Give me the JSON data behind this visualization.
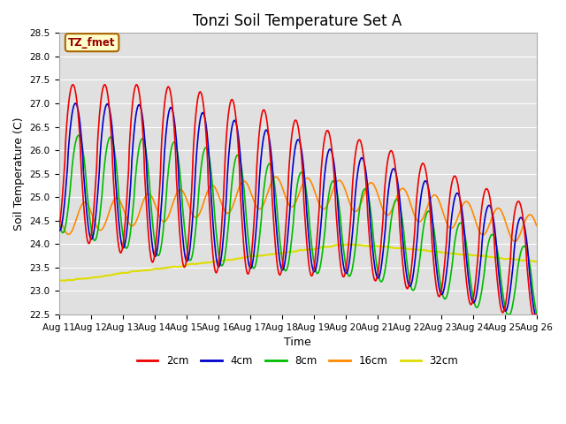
{
  "title": "Tonzi Soil Temperature Set A",
  "xlabel": "Time",
  "ylabel": "Soil Temperature (C)",
  "ylim": [
    22.5,
    28.5
  ],
  "colors": {
    "2cm": "#EE0000",
    "4cm": "#0000CC",
    "8cm": "#00BB00",
    "16cm": "#FF8800",
    "32cm": "#DDDD00"
  },
  "legend_labels": [
    "2cm",
    "4cm",
    "8cm",
    "16cm",
    "32cm"
  ],
  "annotation_text": "TZ_fmet",
  "annotation_bg": "#FFFFCC",
  "annotation_border": "#AA6600",
  "background_color": "#E0E0E0",
  "grid_color": "#FFFFFF",
  "title_fontsize": 12,
  "axis_fontsize": 9,
  "tick_fontsize": 7.5,
  "x_tick_labels": [
    "Aug 11",
    "Aug 12",
    "Aug 13",
    "Aug 14",
    "Aug 15",
    "Aug 16",
    "Aug 17",
    "Aug 18",
    "Aug 19",
    "Aug 20",
    "Aug 21",
    "Aug 22",
    "Aug 23",
    "Aug 24",
    "Aug 25",
    "Aug 26"
  ],
  "yticks": [
    22.5,
    23.0,
    23.5,
    24.0,
    24.5,
    25.0,
    25.5,
    26.0,
    26.5,
    27.0,
    27.5,
    28.0,
    28.5
  ]
}
